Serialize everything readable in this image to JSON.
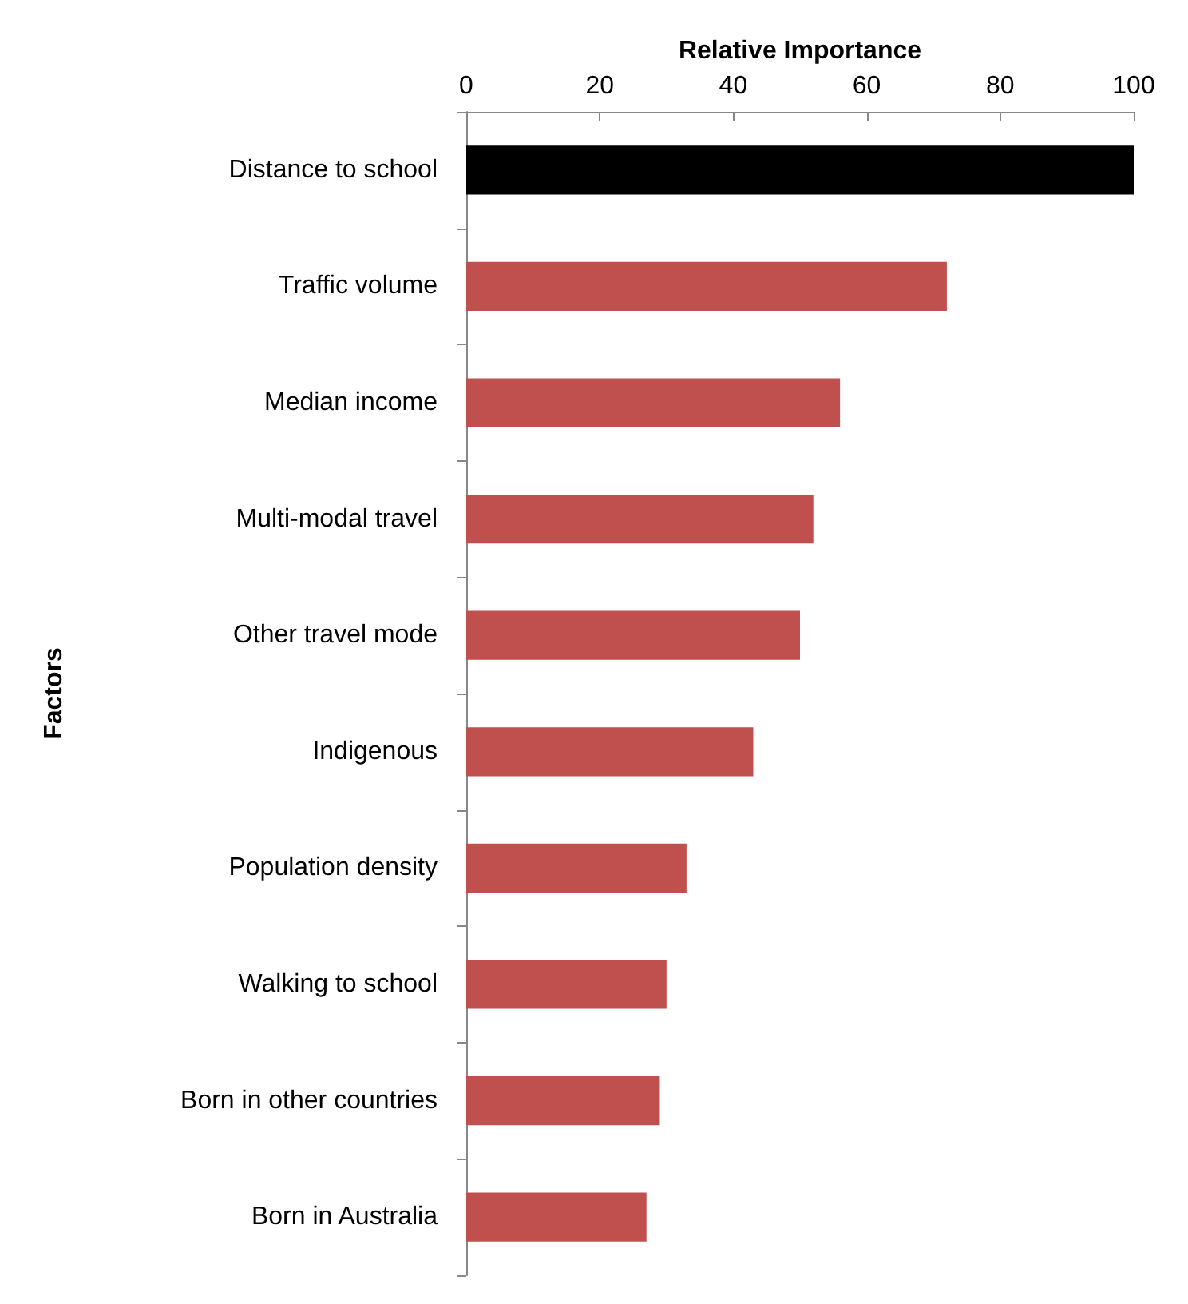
{
  "chart_data": {
    "type": "bar",
    "orientation": "horizontal",
    "xlabel": "Relative Importance",
    "ylabel": "Factors",
    "categories": [
      "Distance to school",
      "Traffic volume",
      "Median income",
      "Multi-modal travel",
      "Other travel mode",
      "Indigenous",
      "Population density",
      "Walking to school",
      "Born in other countries",
      "Born in Australia"
    ],
    "values": [
      100,
      72,
      56,
      52,
      50,
      43,
      33,
      30,
      29,
      27
    ],
    "colors": [
      "#000000",
      "#c0504d",
      "#c0504d",
      "#c0504d",
      "#c0504d",
      "#c0504d",
      "#c0504d",
      "#c0504d",
      "#c0504d",
      "#c0504d"
    ],
    "xlim": [
      0,
      100
    ],
    "xticks": [
      0,
      20,
      40,
      60,
      80,
      100
    ]
  }
}
